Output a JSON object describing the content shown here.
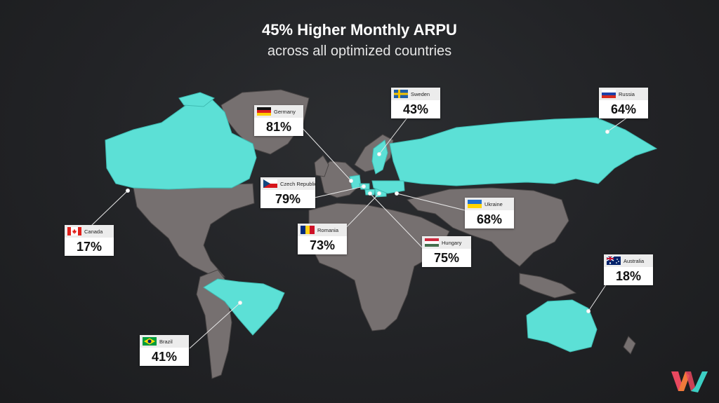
{
  "header": {
    "title": "45% Higher Monthly ARPU",
    "subtitle": "across all optimized countries"
  },
  "colors": {
    "optimized": "#5ce0d6",
    "land": "#767070",
    "background": "#222326",
    "logo": [
      "#e8485f",
      "#f07a3a",
      "#3ccfc4"
    ]
  },
  "countries": [
    {
      "id": "germany",
      "name": "Germany",
      "value": "81%"
    },
    {
      "id": "sweden",
      "name": "Sweden",
      "value": "43%"
    },
    {
      "id": "russia",
      "name": "Russia",
      "value": "64%"
    },
    {
      "id": "czech",
      "name": "Czech Republic",
      "value": "79%"
    },
    {
      "id": "ukraine",
      "name": "Ukraine",
      "value": "68%"
    },
    {
      "id": "canada",
      "name": "Canada",
      "value": "17%"
    },
    {
      "id": "romania",
      "name": "Romania",
      "value": "73%"
    },
    {
      "id": "hungary",
      "name": "Hungary",
      "value": "75%"
    },
    {
      "id": "australia",
      "name": "Australia",
      "value": "18%"
    },
    {
      "id": "brazil",
      "name": "Brazil",
      "value": "41%"
    }
  ],
  "logo": {
    "icon": "wm-logo-icon"
  }
}
